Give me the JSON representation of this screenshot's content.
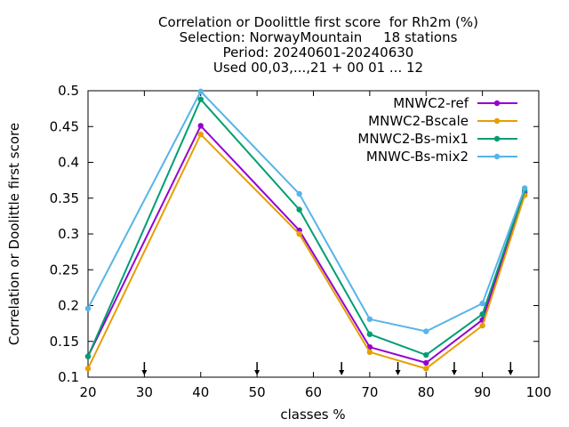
{
  "chart_data": {
    "type": "line",
    "title_lines": [
      "Correlation or Doolittle first score  for Rh2m (%)",
      "Selection: NorwayMountain     18 stations",
      "Period: 20240601-20240630",
      "Used 00,03,...,21 + 00 01 ... 12"
    ],
    "xlabel": "classes %",
    "ylabel": "Correlation or Doolittle first score",
    "xlim": [
      20,
      100
    ],
    "ylim": [
      0.1,
      0.5
    ],
    "xticks": [
      20,
      30,
      40,
      50,
      60,
      70,
      80,
      90,
      100
    ],
    "yticks": [
      0.1,
      0.15,
      0.2,
      0.25,
      0.3,
      0.35,
      0.4,
      0.45,
      0.5
    ],
    "xtick_labels": [
      "20",
      "30",
      "40",
      "50",
      "60",
      "70",
      "80",
      "90",
      "100"
    ],
    "ytick_labels": [
      "0.1",
      "0.15",
      "0.2",
      "0.25",
      "0.3",
      "0.35",
      "0.4",
      "0.45",
      "0.5"
    ],
    "arrow_markers_x": [
      30,
      50,
      65,
      75,
      85,
      95
    ],
    "grid": false,
    "legend_position": "top-right",
    "series": [
      {
        "name": "MNWC2-ref",
        "color": "#9400d3",
        "x": [
          20,
          40,
          57.5,
          70,
          80,
          90,
          97.5
        ],
        "y": [
          0.129,
          0.451,
          0.305,
          0.142,
          0.12,
          0.18,
          0.358
        ]
      },
      {
        "name": "MNWC2-Bscale",
        "color": "#e69f00",
        "x": [
          20,
          40,
          57.5,
          70,
          80,
          90,
          97.5
        ],
        "y": [
          0.112,
          0.439,
          0.3,
          0.135,
          0.112,
          0.172,
          0.354
        ]
      },
      {
        "name": "MNWC2-Bs-mix1",
        "color": "#009e73",
        "x": [
          20,
          40,
          57.5,
          70,
          80,
          90,
          97.5
        ],
        "y": [
          0.129,
          0.488,
          0.334,
          0.16,
          0.131,
          0.188,
          0.361
        ]
      },
      {
        "name": "MNWC-Bs-mix2",
        "color": "#56b4e9",
        "x": [
          20,
          40,
          57.5,
          70,
          80,
          90,
          97.5
        ],
        "y": [
          0.196,
          0.499,
          0.356,
          0.181,
          0.164,
          0.203,
          0.364
        ]
      }
    ]
  }
}
